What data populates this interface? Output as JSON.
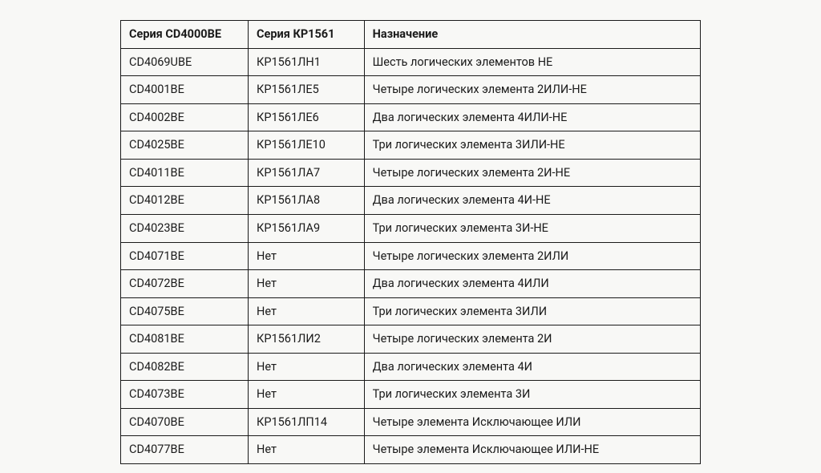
{
  "table": {
    "type": "table",
    "background_color": "#f8f8f6",
    "border_color": "#1a1a1a",
    "text_color": "#1a1a1a",
    "header_font_weight": 700,
    "body_font_weight": 400,
    "font_size_pt": 11,
    "column_widths_pct": [
      22,
      20,
      58
    ],
    "columns": [
      "Серия CD4000BE",
      "Серия КР1561",
      "Назначение"
    ],
    "rows": [
      [
        "CD4069UBE",
        "КР1561ЛН1",
        "Шесть логических элементов НЕ"
      ],
      [
        "CD4001BE",
        "КР1561ЛЕ5",
        "Четыре логических элемента 2ИЛИ-НЕ"
      ],
      [
        "CD4002BE",
        "КР1561ЛЕ6",
        "Два логических элемента 4ИЛИ-НЕ"
      ],
      [
        "CD4025BE",
        "КР1561ЛЕ10",
        "Три логических элемента 3ИЛИ-НЕ"
      ],
      [
        "CD4011BE",
        "КР1561ЛА7",
        "Четыре логических элемента 2И-НЕ"
      ],
      [
        "CD4012BE",
        "КР1561ЛА8",
        "Два логических элемента 4И-НЕ"
      ],
      [
        "CD4023BE",
        "КР1561ЛА9",
        "Три логических элемента 3И-НЕ"
      ],
      [
        "CD4071BE",
        "Нет",
        "Четыре логических элемента 2ИЛИ"
      ],
      [
        "CD4072BE",
        "Нет",
        "Два логических элемента 4ИЛИ"
      ],
      [
        "CD4075BE",
        "Нет",
        "Три логических элемента 3ИЛИ"
      ],
      [
        "CD4081BE",
        "КР1561ЛИ2",
        "Четыре логических элемента 2И"
      ],
      [
        "CD4082BE",
        "Нет",
        "Два логических элемента 4И"
      ],
      [
        "CD4073BE",
        "Нет",
        "Три логических элемента 3И"
      ],
      [
        "CD4070BE",
        "КР1561ЛП14",
        "Четыре элемента Исключающее ИЛИ"
      ],
      [
        "CD4077BE",
        "Нет",
        "Четыре элемента Исключающее ИЛИ-НЕ"
      ]
    ]
  }
}
